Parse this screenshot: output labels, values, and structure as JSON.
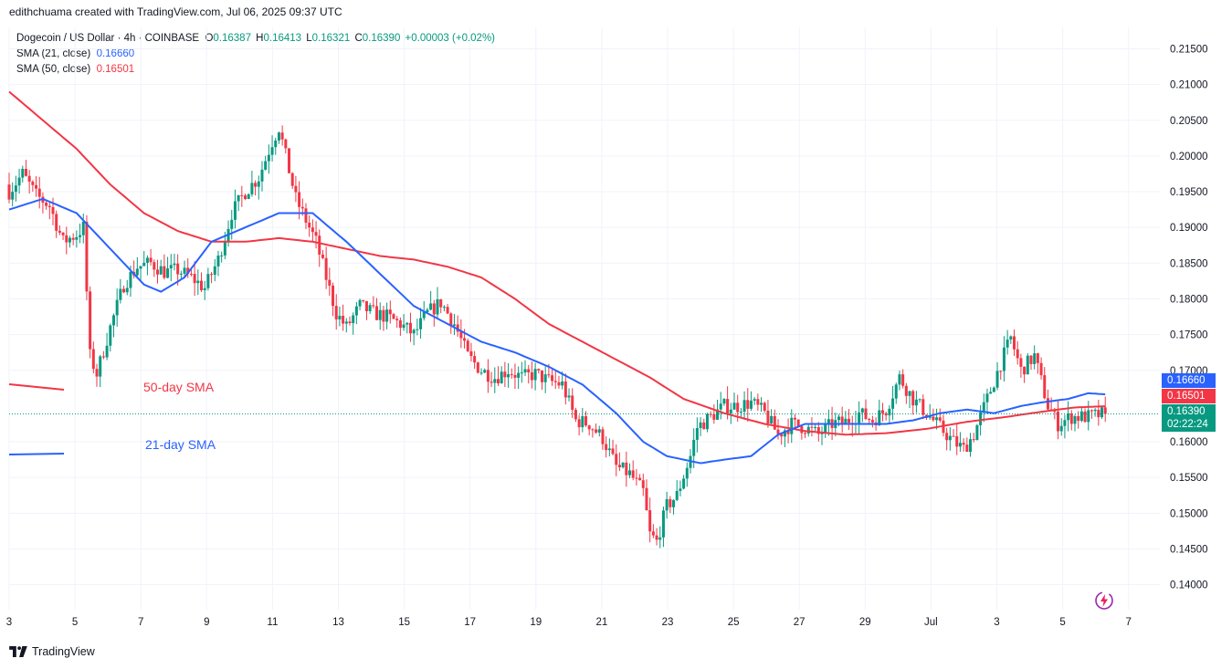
{
  "header": {
    "attribution": "edithchuama created with TradingView.com, Jul 06, 2025 09:37 UTC"
  },
  "legend": {
    "symbol": "Dogecoin / US Dollar · 4h · COINBASE",
    "o_label": "O",
    "o": "0.16387",
    "h_label": "H",
    "h": "0.16413",
    "l_label": "L",
    "l": "0.16321",
    "c_label": "C",
    "c": "0.16390",
    "change": "+0.00003 (+0.02%)",
    "sma21_label": "SMA (21, close)",
    "sma21_value": "0.16660",
    "sma50_label": "SMA (50, close)",
    "sma50_value": "0.16501"
  },
  "annotations": {
    "sma50": "50-day SMA",
    "sma21": "21-day SMA"
  },
  "price_tags": {
    "sma21": "0.16660",
    "sma50": "0.16501",
    "last": "0.16390",
    "countdown": "02:22:24"
  },
  "footer": {
    "brand": "TradingView"
  },
  "colors": {
    "up": "#089981",
    "down": "#f23645",
    "sma21": "#2962ff",
    "sma50": "#f23645",
    "grid": "#f0f3fa"
  },
  "chart_data": {
    "type": "candlestick",
    "symbol": "DOGE/USD",
    "timeframe": "4h",
    "ylim": [
      0.1365,
      0.218
    ],
    "y_ticks": [
      "0.21500",
      "0.21000",
      "0.20500",
      "0.20000",
      "0.19500",
      "0.19000",
      "0.18500",
      "0.18000",
      "0.17500",
      "0.17000",
      "0.16000",
      "0.15500",
      "0.15000",
      "0.14500",
      "0.14000"
    ],
    "x_ticks": [
      "3",
      "5",
      "7",
      "9",
      "11",
      "13",
      "15",
      "17",
      "19",
      "21",
      "23",
      "25",
      "27",
      "29",
      "Jul",
      "3",
      "5",
      "7"
    ],
    "last_price": 0.1639,
    "close_key": [
      [
        0,
        0.195
      ],
      [
        4,
        0.1975
      ],
      [
        8,
        0.1945
      ],
      [
        12,
        0.193
      ],
      [
        16,
        0.188
      ],
      [
        20,
        0.189
      ],
      [
        22,
        0.19
      ],
      [
        24,
        0.172
      ],
      [
        26,
        0.1695
      ],
      [
        30,
        0.176
      ],
      [
        34,
        0.182
      ],
      [
        38,
        0.1845
      ],
      [
        42,
        0.185
      ],
      [
        46,
        0.1838
      ],
      [
        50,
        0.184
      ],
      [
        54,
        0.183
      ],
      [
        58,
        0.1815
      ],
      [
        62,
        0.1855
      ],
      [
        66,
        0.192
      ],
      [
        70,
        0.195
      ],
      [
        74,
        0.197
      ],
      [
        78,
        0.202
      ],
      [
        80,
        0.204
      ],
      [
        82,
        0.2
      ],
      [
        85,
        0.194
      ],
      [
        88,
        0.191
      ],
      [
        91,
        0.188
      ],
      [
        94,
        0.183
      ],
      [
        97,
        0.178
      ],
      [
        100,
        0.176
      ],
      [
        104,
        0.179
      ],
      [
        108,
        0.178
      ],
      [
        112,
        0.1775
      ],
      [
        116,
        0.1765
      ],
      [
        120,
        0.175
      ],
      [
        124,
        0.178
      ],
      [
        128,
        0.1795
      ],
      [
        132,
        0.1765
      ],
      [
        136,
        0.172
      ],
      [
        140,
        0.17
      ],
      [
        144,
        0.169
      ],
      [
        148,
        0.17
      ],
      [
        152,
        0.169
      ],
      [
        156,
        0.1695
      ],
      [
        160,
        0.1685
      ],
      [
        164,
        0.168
      ],
      [
        168,
        0.163
      ],
      [
        172,
        0.1625
      ],
      [
        176,
        0.1605
      ],
      [
        180,
        0.1565
      ],
      [
        184,
        0.1555
      ],
      [
        188,
        0.153
      ],
      [
        190,
        0.147
      ],
      [
        192,
        0.146
      ],
      [
        195,
        0.151
      ],
      [
        198,
        0.1525
      ],
      [
        202,
        0.158
      ],
      [
        204,
        0.162
      ],
      [
        208,
        0.1635
      ],
      [
        212,
        0.165
      ],
      [
        216,
        0.165
      ],
      [
        220,
        0.1655
      ],
      [
        224,
        0.164
      ],
      [
        228,
        0.161
      ],
      [
        232,
        0.1625
      ],
      [
        236,
        0.162
      ],
      [
        240,
        0.161
      ],
      [
        244,
        0.1625
      ],
      [
        248,
        0.1628
      ],
      [
        252,
        0.164
      ],
      [
        256,
        0.163
      ],
      [
        260,
        0.1645
      ],
      [
        264,
        0.169
      ],
      [
        268,
        0.166
      ],
      [
        272,
        0.164
      ],
      [
        276,
        0.162
      ],
      [
        280,
        0.16
      ],
      [
        283,
        0.159
      ],
      [
        286,
        0.161
      ],
      [
        290,
        0.166
      ],
      [
        294,
        0.171
      ],
      [
        297,
        0.1745
      ],
      [
        300,
        0.17
      ],
      [
        304,
        0.172
      ],
      [
        308,
        0.165
      ],
      [
        311,
        0.1625
      ],
      [
        315,
        0.1635
      ],
      [
        320,
        0.1635
      ],
      [
        325,
        0.1639
      ]
    ],
    "sma21_key": [
      [
        0,
        0.1925
      ],
      [
        10,
        0.194
      ],
      [
        20,
        0.192
      ],
      [
        30,
        0.187
      ],
      [
        40,
        0.182
      ],
      [
        45,
        0.181
      ],
      [
        52,
        0.183
      ],
      [
        60,
        0.188
      ],
      [
        70,
        0.19
      ],
      [
        80,
        0.192
      ],
      [
        90,
        0.192
      ],
      [
        100,
        0.188
      ],
      [
        110,
        0.1835
      ],
      [
        120,
        0.179
      ],
      [
        130,
        0.1765
      ],
      [
        140,
        0.174
      ],
      [
        150,
        0.1725
      ],
      [
        160,
        0.1705
      ],
      [
        170,
        0.168
      ],
      [
        180,
        0.164
      ],
      [
        188,
        0.16
      ],
      [
        195,
        0.158
      ],
      [
        205,
        0.157
      ],
      [
        212,
        0.1575
      ],
      [
        220,
        0.158
      ],
      [
        228,
        0.161
      ],
      [
        236,
        0.1625
      ],
      [
        244,
        0.1625
      ],
      [
        252,
        0.1625
      ],
      [
        260,
        0.1625
      ],
      [
        268,
        0.163
      ],
      [
        276,
        0.164
      ],
      [
        284,
        0.1645
      ],
      [
        292,
        0.164
      ],
      [
        300,
        0.165
      ],
      [
        306,
        0.1655
      ],
      [
        314,
        0.166
      ],
      [
        320,
        0.1668
      ],
      [
        326,
        0.1666
      ]
    ],
    "sma50_key": [
      [
        0,
        0.209
      ],
      [
        10,
        0.205
      ],
      [
        20,
        0.201
      ],
      [
        30,
        0.196
      ],
      [
        40,
        0.192
      ],
      [
        50,
        0.1895
      ],
      [
        60,
        0.188
      ],
      [
        70,
        0.188
      ],
      [
        80,
        0.1885
      ],
      [
        90,
        0.188
      ],
      [
        100,
        0.187
      ],
      [
        110,
        0.186
      ],
      [
        120,
        0.1855
      ],
      [
        130,
        0.1845
      ],
      [
        140,
        0.183
      ],
      [
        150,
        0.18
      ],
      [
        160,
        0.1765
      ],
      [
        170,
        0.174
      ],
      [
        180,
        0.1715
      ],
      [
        190,
        0.169
      ],
      [
        200,
        0.166
      ],
      [
        212,
        0.164
      ],
      [
        224,
        0.1625
      ],
      [
        236,
        0.1615
      ],
      [
        248,
        0.161
      ],
      [
        260,
        0.1612
      ],
      [
        272,
        0.1618
      ],
      [
        284,
        0.1628
      ],
      [
        296,
        0.1635
      ],
      [
        306,
        0.1642
      ],
      [
        316,
        0.1648
      ],
      [
        326,
        0.165
      ]
    ]
  }
}
